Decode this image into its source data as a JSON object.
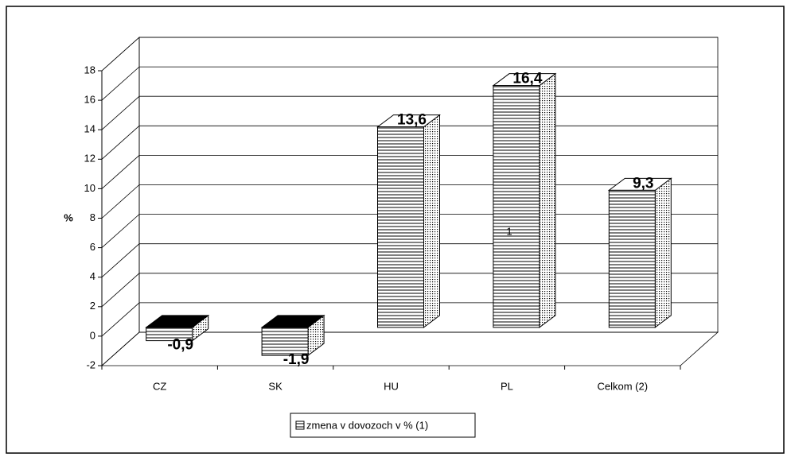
{
  "chart_data": {
    "type": "bar3d",
    "categories": [
      "CZ",
      "SK",
      "HU",
      "PL",
      "Celkom (2)"
    ],
    "series": [
      {
        "name": "zmena v dovozoch v % (1)",
        "color": "#ffffff",
        "values": [
          -0.9,
          -1.9,
          13.6,
          16.4,
          9.3
        ],
        "value_labels": [
          "-0,9",
          "-1,9",
          "13,6",
          "16,4",
          "9,3"
        ]
      }
    ],
    "ylabel": "%",
    "annotation": "1",
    "ylim": [
      -2,
      18
    ],
    "yticks": [
      -2,
      0,
      2,
      4,
      6,
      8,
      10,
      12,
      14,
      16,
      18
    ],
    "grid": true,
    "legend": "bottom"
  }
}
